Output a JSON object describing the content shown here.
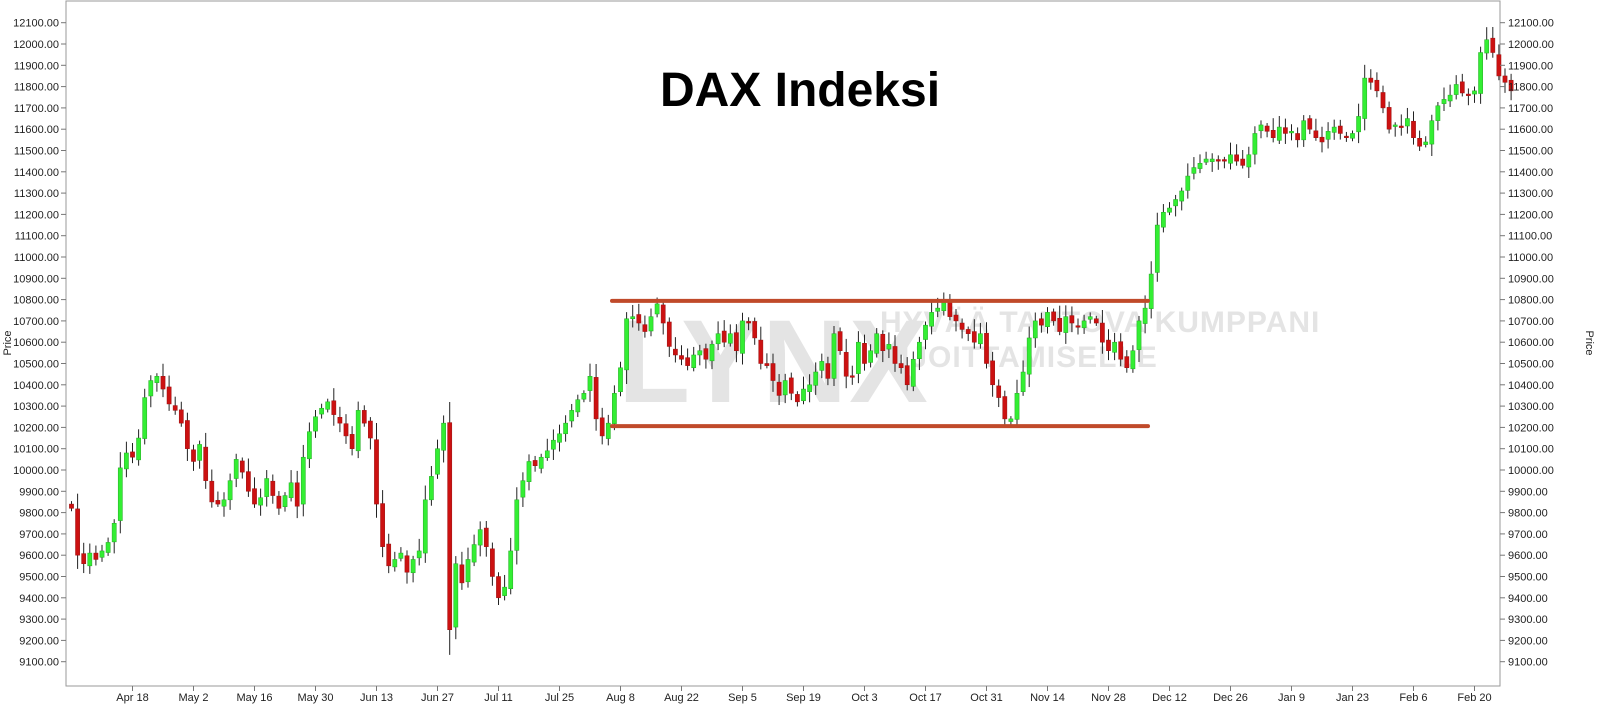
{
  "chart_data": {
    "type": "candlestick",
    "title": "DAX Indeksi",
    "ylabel_left": "Price",
    "ylabel_right": "Price",
    "ylim": [
      9000,
      12160
    ],
    "y_ticks": [
      9100,
      9200,
      9300,
      9400,
      9500,
      9600,
      9700,
      9800,
      9900,
      10000,
      10100,
      10200,
      10300,
      10400,
      10500,
      10600,
      10700,
      10800,
      10900,
      11000,
      11100,
      11200,
      11300,
      11400,
      11500,
      11600,
      11700,
      11800,
      11900,
      12000,
      12100
    ],
    "y_tick_labels": [
      "9100.00",
      "9200.00",
      "9300.00",
      "9400.00",
      "9500.00",
      "9600.00",
      "9700.00",
      "9800.00",
      "9900.00",
      "10000.00",
      "10100.00",
      "10200.00",
      "10300.00",
      "10400.00",
      "10500.00",
      "10600.00",
      "10700.00",
      "10800.00",
      "10900.00",
      "11000.00",
      "11100.00",
      "11200.00",
      "11300.00",
      "11400.00",
      "11500.00",
      "11600.00",
      "11700.00",
      "11800.00",
      "11900.00",
      "12000.00",
      "12100.00"
    ],
    "x_ticks": [
      {
        "label": "Apr 18",
        "index": 10
      },
      {
        "label": "May 2",
        "index": 20
      },
      {
        "label": "May 16",
        "index": 30
      },
      {
        "label": "May 30",
        "index": 40
      },
      {
        "label": "Jun 13",
        "index": 50
      },
      {
        "label": "Jun 27",
        "index": 60
      },
      {
        "label": "Jul 11",
        "index": 70
      },
      {
        "label": "Jul 25",
        "index": 80
      },
      {
        "label": "Aug 8",
        "index": 90
      },
      {
        "label": "Aug 22",
        "index": 100
      },
      {
        "label": "Sep 5",
        "index": 110
      },
      {
        "label": "Sep 19",
        "index": 120
      },
      {
        "label": "Oct 3",
        "index": 130
      },
      {
        "label": "Oct 17",
        "index": 140
      },
      {
        "label": "Oct 31",
        "index": 150
      },
      {
        "label": "Nov 14",
        "index": 160
      },
      {
        "label": "Nov 28",
        "index": 170
      },
      {
        "label": "Dec 12",
        "index": 180
      },
      {
        "label": "Dec 26",
        "index": 190
      },
      {
        "label": "Jan 9",
        "index": 200
      },
      {
        "label": "Jan 23",
        "index": 210
      },
      {
        "label": "Feb 6",
        "index": 220
      },
      {
        "label": "Feb 20",
        "index": 230
      }
    ],
    "close": [
      9820,
      9600,
      9560,
      9610,
      9580,
      9620,
      9660,
      9750,
      10010,
      10080,
      10060,
      10150,
      10340,
      10420,
      10440,
      10380,
      10310,
      10280,
      10220,
      10100,
      10040,
      10120,
      9950,
      9850,
      9840,
      9860,
      9950,
      10050,
      9990,
      9900,
      9840,
      9870,
      9960,
      9880,
      9820,
      9880,
      9940,
      9830,
      10060,
      10180,
      10250,
      10290,
      10320,
      10260,
      10220,
      10160,
      10100,
      10280,
      10220,
      10150,
      9840,
      9640,
      9550,
      9580,
      9610,
      9520,
      9580,
      9620,
      9860,
      9970,
      10100,
      10220,
      9250,
      9560,
      9470,
      9580,
      9650,
      9720,
      9640,
      9500,
      9400,
      9450,
      9620,
      9860,
      9950,
      10040,
      10020,
      10060,
      10090,
      10140,
      10170,
      10220,
      10280,
      10330,
      10360,
      10440,
      10240,
      10160,
      10220,
      10360,
      10480,
      10710,
      10720,
      10690,
      10650,
      10720,
      10780,
      10690,
      10580,
      10540,
      10520,
      10490,
      10540,
      10560,
      10520,
      10590,
      10640,
      10600,
      10640,
      10560,
      10700,
      10690,
      10620,
      10500,
      10490,
      10420,
      10350,
      10420,
      10360,
      10320,
      10380,
      10400,
      10460,
      10510,
      10430,
      10640,
      10560,
      10440,
      10440,
      10600,
      10500,
      10560,
      10640,
      10560,
      10590,
      10500,
      10480,
      10400,
      10520,
      10600,
      10680,
      10740,
      10760,
      10790,
      10720,
      10700,
      10660,
      10640,
      10600,
      10640,
      10500,
      10400,
      10340,
      10240,
      10240,
      10360,
      10460,
      10620,
      10700,
      10680,
      10740,
      10700,
      10650,
      10720,
      10690,
      10670,
      10700,
      10720,
      10690,
      10600,
      10560,
      10600,
      10520,
      10480,
      10560,
      10700,
      10760,
      10920,
      11150,
      11210,
      11230,
      11270,
      11310,
      11380,
      11420,
      11440,
      11460,
      11460,
      11450,
      11450,
      11480,
      11450,
      11430,
      11480,
      11580,
      11620,
      11590,
      11560,
      11610,
      11580,
      11590,
      11550,
      11640,
      11600,
      11560,
      11540,
      11590,
      11610,
      11580,
      11560,
      11580,
      11660,
      11840,
      11820,
      11780,
      11700,
      11600,
      11620,
      11610,
      11650,
      11560,
      11520,
      11540,
      11640,
      11710,
      11740,
      11760,
      11810,
      11770,
      11760,
      11780,
      11960,
      12020,
      11960,
      11850,
      11820,
      11780
    ]
  }
}
